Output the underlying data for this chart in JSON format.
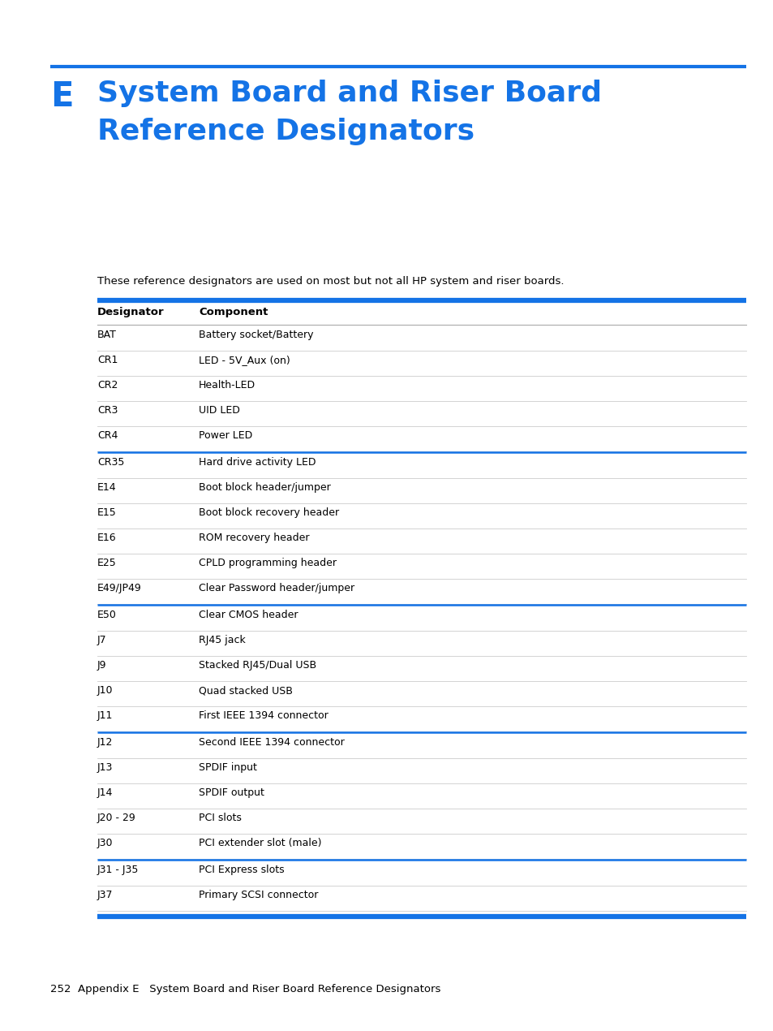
{
  "page_bg": "#ffffff",
  "blue_color": "#1473e6",
  "text_color": "#000000",
  "chapter_letter": "E",
  "title_line1": "System Board and Riser Board",
  "title_line2": "Reference Designators",
  "intro_text": "These reference designators are used on most but not all HP system and riser boards.",
  "col1_header": "Designator",
  "col2_header": "Component",
  "rows": [
    {
      "designator": "BAT",
      "component": "Battery socket/Battery",
      "blue_above": false
    },
    {
      "designator": "CR1",
      "component": "LED - 5V_Aux (on)",
      "blue_above": false
    },
    {
      "designator": "CR2",
      "component": "Health-LED",
      "blue_above": false
    },
    {
      "designator": "CR3",
      "component": "UID LED",
      "blue_above": false
    },
    {
      "designator": "CR4",
      "component": "Power LED",
      "blue_above": false
    },
    {
      "designator": "CR35",
      "component": "Hard drive activity LED",
      "blue_above": true
    },
    {
      "designator": "E14",
      "component": "Boot block header/jumper",
      "blue_above": false
    },
    {
      "designator": "E15",
      "component": "Boot block recovery header",
      "blue_above": false
    },
    {
      "designator": "E16",
      "component": "ROM recovery header",
      "blue_above": false
    },
    {
      "designator": "E25",
      "component": "CPLD programming header",
      "blue_above": false
    },
    {
      "designator": "E49/JP49",
      "component": "Clear Password header/jumper",
      "blue_above": false
    },
    {
      "designator": "E50",
      "component": "Clear CMOS header",
      "blue_above": true
    },
    {
      "designator": "J7",
      "component": "RJ45 jack",
      "blue_above": false
    },
    {
      "designator": "J9",
      "component": "Stacked RJ45/Dual USB",
      "blue_above": false
    },
    {
      "designator": "J10",
      "component": "Quad stacked USB",
      "blue_above": false
    },
    {
      "designator": "J11",
      "component": "First IEEE 1394 connector",
      "blue_above": false
    },
    {
      "designator": "J12",
      "component": "Second IEEE 1394 connector",
      "blue_above": true
    },
    {
      "designator": "J13",
      "component": "SPDIF input",
      "blue_above": false
    },
    {
      "designator": "J14",
      "component": "SPDIF output",
      "blue_above": false
    },
    {
      "designator": "J20 - 29",
      "component": "PCI slots",
      "blue_above": false
    },
    {
      "designator": "J30",
      "component": "PCI extender slot (male)",
      "blue_above": false
    },
    {
      "designator": "J31 - J35",
      "component": "PCI Express slots",
      "blue_above": true
    },
    {
      "designator": "J37",
      "component": "Primary SCSI connector",
      "blue_above": false
    }
  ],
  "footer_text": "252  Appendix E   System Board and Riser Board Reference Designators"
}
